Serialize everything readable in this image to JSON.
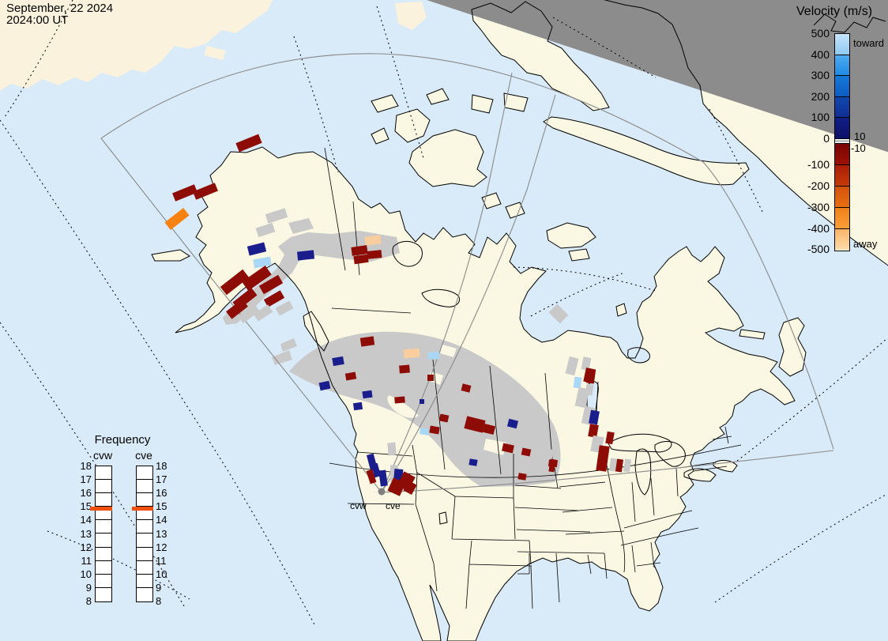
{
  "title_block": {
    "line1": "September, 22 2024",
    "line2": "2024:00 UT"
  },
  "velocity_legend": {
    "title": "Velocity (m/s)",
    "toward": "toward",
    "away": "away",
    "pos_threshold": "10",
    "neg_threshold": "-10",
    "tick_labels": [
      "500",
      "400",
      "300",
      "200",
      "100",
      "0",
      "-100",
      "-200",
      "-300",
      "-400",
      "-500"
    ],
    "segments": [
      [
        "#C5E5FB",
        "#8FCBF3"
      ],
      [
        "#4FAAF0",
        "#1E8CE4"
      ],
      [
        "#1478D8",
        "#0E5CC2"
      ],
      [
        "#1048AE",
        "#112F94"
      ],
      [
        "#121F86",
        "#0C1166"
      ],
      [
        "#790301",
        "#9C1206"
      ],
      [
        "#AA1E07",
        "#C43A09"
      ],
      [
        "#D2520C",
        "#E96F13"
      ],
      [
        "#F08018",
        "#F99E38"
      ],
      [
        "#FBB567",
        "#FDDCAB"
      ]
    ]
  },
  "frequency_legend": {
    "title": "Frequency",
    "columns": [
      "cvw",
      "cve"
    ],
    "scale_labels": [
      "18",
      "17",
      "16",
      "15",
      "14",
      "13",
      "12",
      "11",
      "10",
      "9",
      "8"
    ],
    "marker_value": "15",
    "marker_color": "#F2500F"
  },
  "radar_site": {
    "labels": [
      "cvw",
      "cve"
    ]
  },
  "palette": {
    "darkred": "#8E0C06",
    "orange": "#F78212",
    "peach": "#FACD9E",
    "navy": "#1A1E8C",
    "lightblue": "#A9D7F5",
    "scatter": "#C9C9C9",
    "ocean": "#D9EAF8",
    "land": "#FAF7E2",
    "night": "#8C8C8C",
    "fov_line": "#8A8A8A"
  },
  "cells": [
    [
      234,
      244,
      30,
      11,
      -22,
      "darkred"
    ],
    [
      260,
      242,
      30,
      11,
      -22,
      "darkred"
    ],
    [
      224,
      277,
      30,
      12,
      -38,
      "orange"
    ],
    [
      315,
      181,
      31,
      12,
      -22,
      "darkred"
    ],
    [
      350,
      273,
      26,
      12,
      -18,
      "scatter"
    ],
    [
      336,
      291,
      22,
      12,
      -18,
      "scatter"
    ],
    [
      325,
      315,
      22,
      12,
      -14,
      "navy"
    ],
    [
      332,
      332,
      22,
      11,
      -10,
      "lightblue"
    ],
    [
      387,
      323,
      21,
      11,
      -6,
      "navy"
    ],
    [
      472,
      304,
      20,
      11,
      -8,
      "peach"
    ],
    [
      455,
      317,
      20,
      11,
      -8,
      "darkred"
    ],
    [
      474,
      322,
      18,
      10,
      -6,
      "darkred"
    ],
    [
      457,
      328,
      18,
      10,
      -8,
      "darkred"
    ],
    [
      297,
      357,
      36,
      13,
      -38,
      "darkred"
    ],
    [
      325,
      352,
      36,
      14,
      -35,
      "darkred"
    ],
    [
      310,
      378,
      30,
      12,
      -38,
      "darkred"
    ],
    [
      300,
      391,
      26,
      12,
      -38,
      "darkred"
    ],
    [
      343,
      360,
      28,
      12,
      -30,
      "darkred"
    ],
    [
      315,
      397,
      26,
      11,
      -36,
      "scatter"
    ],
    [
      347,
      378,
      24,
      11,
      -30,
      "darkred"
    ],
    [
      333,
      396,
      22,
      11,
      -33,
      "scatter"
    ],
    [
      360,
      390,
      20,
      11,
      -28,
      "scatter"
    ],
    [
      465,
      432,
      17,
      11,
      -8,
      "darkred"
    ],
    [
      521,
      447,
      20,
      11,
      -5,
      "peach"
    ],
    [
      549,
      450,
      14,
      9,
      -3,
      "lightblue"
    ],
    [
      428,
      457,
      14,
      10,
      -10,
      "navy"
    ],
    [
      512,
      467,
      13,
      10,
      -5,
      "darkred"
    ],
    [
      444,
      476,
      13,
      9,
      -10,
      "darkred"
    ],
    [
      545,
      478,
      8,
      8,
      0,
      "darkred"
    ],
    [
      411,
      488,
      13,
      10,
      -12,
      "navy"
    ],
    [
      465,
      499,
      12,
      9,
      -8,
      "navy"
    ],
    [
      534,
      508,
      6,
      6,
      0,
      "navy"
    ],
    [
      453,
      514,
      11,
      9,
      -8,
      "navy"
    ],
    [
      506,
      506,
      13,
      8,
      -5,
      "darkred"
    ],
    [
      590,
      491,
      11,
      9,
      14,
      "darkred"
    ],
    [
      562,
      529,
      11,
      9,
      12,
      "darkred"
    ],
    [
      601,
      537,
      24,
      16,
      14,
      "darkred"
    ],
    [
      619,
      543,
      14,
      11,
      14,
      "darkred"
    ],
    [
      550,
      544,
      12,
      9,
      10,
      "darkred"
    ],
    [
      537,
      546,
      11,
      8,
      10,
      "lightblue"
    ],
    [
      649,
      536,
      12,
      10,
      14,
      "navy"
    ],
    [
      643,
      567,
      14,
      10,
      12,
      "darkred"
    ],
    [
      666,
      572,
      11,
      9,
      12,
      "darkred"
    ],
    [
      599,
      585,
      10,
      8,
      10,
      "navy"
    ],
    [
      661,
      603,
      10,
      8,
      10,
      "darkred"
    ],
    [
      700,
      586,
      11,
      9,
      8,
      "darkred"
    ],
    [
      707,
      397,
      20,
      15,
      45,
      "scatter"
    ],
    [
      742,
      460,
      10,
      16,
      10,
      "scatter"
    ],
    [
      731,
      484,
      9,
      14,
      8,
      "lightblue"
    ],
    [
      748,
      476,
      10,
      18,
      8,
      "darkred"
    ],
    [
      746,
      493,
      9,
      14,
      8,
      "scatter"
    ],
    [
      724,
      463,
      12,
      22,
      14,
      "scatter"
    ],
    [
      746,
      475,
      12,
      18,
      12,
      "darkred"
    ],
    [
      737,
      503,
      14,
      24,
      12,
      "scatter"
    ],
    [
      745,
      526,
      14,
      22,
      12,
      "scatter"
    ],
    [
      752,
      528,
      11,
      17,
      10,
      "navy"
    ],
    [
      751,
      545,
      11,
      16,
      10,
      "darkred"
    ],
    [
      756,
      562,
      14,
      20,
      10,
      "scatter"
    ],
    [
      763,
      580,
      13,
      32,
      8,
      "darkred"
    ],
    [
      772,
      554,
      9,
      15,
      10,
      "darkred"
    ],
    [
      776,
      588,
      8,
      16,
      8,
      "scatter"
    ],
    [
      784,
      589,
      8,
      16,
      8,
      "darkred"
    ],
    [
      794,
      589,
      8,
      16,
      8,
      "scatter"
    ],
    [
      696,
      575,
      7,
      13,
      8,
      "scatter"
    ],
    [
      699,
      589,
      7,
      16,
      8,
      "darkred"
    ],
    [
      471,
      585,
      9,
      21,
      -15,
      "navy"
    ],
    [
      476,
      595,
      8,
      17,
      -15,
      "navy"
    ],
    [
      470,
      603,
      8,
      17,
      -18,
      "darkred"
    ],
    [
      496,
      568,
      10,
      16,
      -5,
      "scatter"
    ],
    [
      485,
      605,
      9,
      20,
      -8,
      "navy"
    ],
    [
      499,
      599,
      10,
      21,
      0,
      "scatter"
    ],
    [
      504,
      604,
      11,
      21,
      5,
      "navy"
    ],
    [
      502,
      616,
      17,
      18,
      25,
      "darkred"
    ],
    [
      514,
      609,
      16,
      20,
      28,
      "darkred"
    ],
    [
      519,
      617,
      12,
      14,
      28,
      "darkred"
    ]
  ]
}
